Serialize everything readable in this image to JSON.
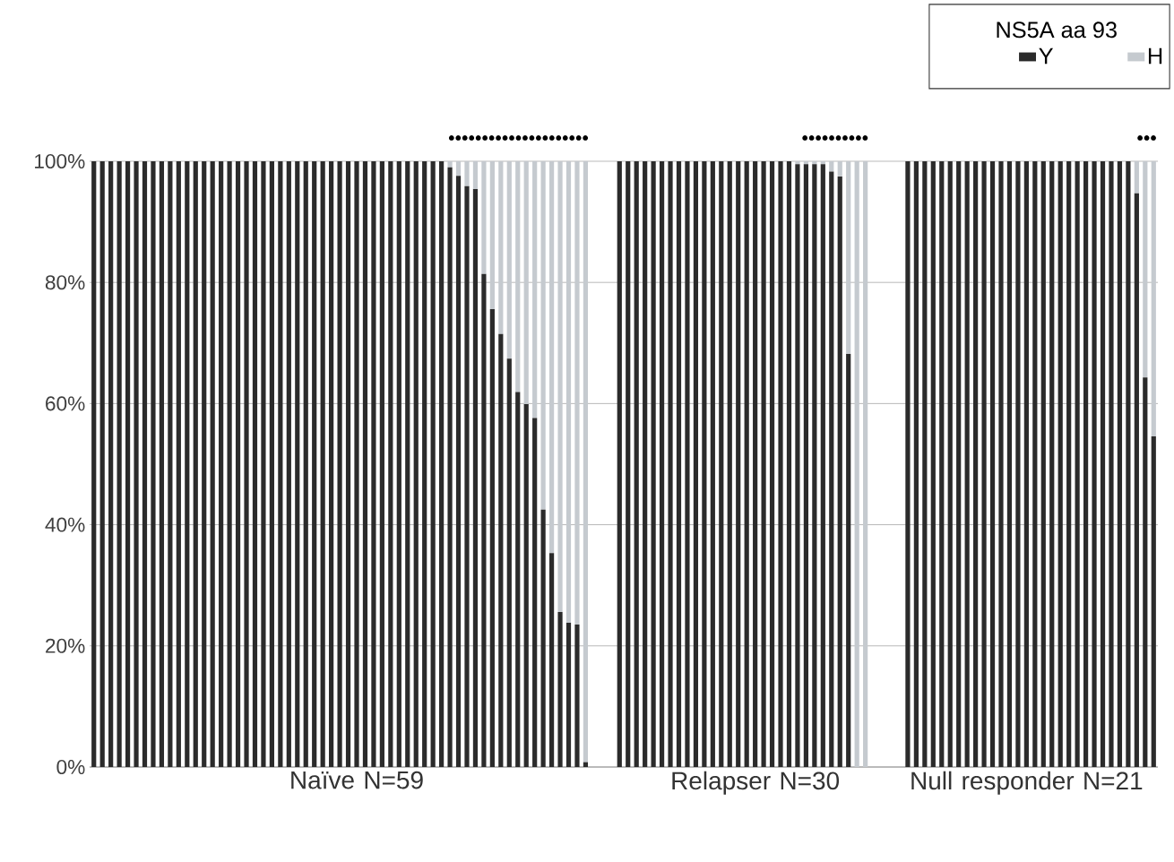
{
  "chart_data": {
    "type": "bar",
    "stacked": true,
    "categories": [
      null,
      null,
      null,
      null,
      null,
      null,
      null,
      null,
      null,
      null,
      null,
      null,
      null,
      null,
      null,
      null,
      null,
      null,
      null,
      null,
      null,
      null,
      null,
      null,
      null,
      null,
      null,
      null,
      null,
      null,
      null,
      "Naïve N=59",
      null,
      null,
      null,
      null,
      null,
      null,
      null,
      null,
      null,
      null,
      null,
      null,
      null,
      null,
      null,
      null,
      null,
      null,
      null,
      null,
      null,
      null,
      null,
      null,
      null,
      null,
      null,
      null,
      null,
      null,
      null,
      null,
      null,
      null,
      null,
      null,
      null,
      null,
      null,
      null,
      null,
      null,
      null,
      null,
      null,
      null,
      "Relapser N=30",
      null,
      null,
      null,
      null,
      null,
      null,
      null,
      null,
      null,
      null,
      null,
      null,
      null,
      null,
      null,
      null,
      null,
      null,
      null,
      null,
      null,
      null,
      null,
      null,
      null,
      null,
      null,
      null,
      null,
      null,
      null,
      "Null responder N=21",
      null,
      null,
      null,
      null,
      null,
      null,
      null,
      null,
      null,
      null,
      null,
      null,
      null,
      null,
      null
    ],
    "series": [
      {
        "name": "Y",
        "color": "#2b2b2b",
        "values": [
          100,
          100,
          100,
          100,
          100,
          100,
          100,
          100,
          100,
          100,
          100,
          100,
          100,
          100,
          100,
          100,
          100,
          100,
          100,
          100,
          100,
          100,
          100,
          100,
          100,
          100,
          100,
          100,
          100,
          100,
          100,
          100,
          100,
          100,
          100,
          100,
          100,
          100,
          100,
          100,
          100,
          100,
          99.0,
          97.6,
          95.9,
          95.4,
          81.4,
          75.6,
          71.5,
          67.4,
          61.9,
          59.9,
          57.6,
          42.5,
          35.3,
          25.6,
          23.8,
          23.5,
          0.8,
          null,
          null,
          null,
          100,
          100,
          100,
          100,
          100,
          100,
          100,
          100,
          100,
          100,
          100,
          100,
          100,
          100,
          100,
          100,
          100,
          100,
          100,
          100,
          100,
          99.5,
          99.5,
          99.5,
          99.5,
          98.3,
          97.5,
          68.2,
          0,
          0,
          null,
          null,
          null,
          null,
          100,
          100,
          100,
          100,
          100,
          100,
          100,
          100,
          100,
          100,
          100,
          100,
          100,
          100,
          100,
          100,
          100,
          100,
          100,
          100,
          100,
          100,
          100,
          100,
          100,
          100,
          100,
          94.7,
          64.3,
          54.6
        ]
      },
      {
        "name": "H",
        "color": "#c5cacf",
        "values": [
          0,
          0,
          0,
          0,
          0,
          0,
          0,
          0,
          0,
          0,
          0,
          0,
          0,
          0,
          0,
          0,
          0,
          0,
          0,
          0,
          0,
          0,
          0,
          0,
          0,
          0,
          0,
          0,
          0,
          0,
          0,
          0,
          0,
          0,
          0,
          0,
          0,
          0,
          0,
          0,
          0,
          0,
          1.0,
          2.4,
          4.1,
          4.6,
          18.6,
          24.4,
          28.5,
          32.6,
          38.1,
          40.1,
          42.4,
          57.5,
          64.7,
          74.4,
          76.2,
          76.5,
          99.2,
          null,
          null,
          null,
          0,
          0,
          0,
          0,
          0,
          0,
          0,
          0,
          0,
          0,
          0,
          0,
          0,
          0,
          0,
          0,
          0,
          0,
          0,
          0,
          0,
          0.5,
          0.5,
          0.5,
          0.5,
          1.7,
          2.5,
          31.8,
          100,
          100,
          null,
          null,
          null,
          null,
          0,
          0,
          0,
          0,
          0,
          0,
          0,
          0,
          0,
          0,
          0,
          0,
          0,
          0,
          0,
          0,
          0,
          0,
          0,
          0,
          0,
          0,
          0,
          0,
          0,
          0,
          0,
          5.3,
          35.7,
          45.4
        ]
      }
    ],
    "ylim": [
      0,
      100
    ],
    "yticks": [
      {
        "value": 0,
        "label": "0%"
      },
      {
        "value": 20,
        "label": "20%"
      },
      {
        "value": 40,
        "label": "40%"
      },
      {
        "value": 60,
        "label": "60%"
      },
      {
        "value": 80,
        "label": "80%"
      },
      {
        "value": 100,
        "label": "100%"
      }
    ],
    "grid": "y",
    "legend": "top right",
    "legend_title": "NS5A aa 93",
    "annotations": [
      "•••••••••••••••••••••",
      "••••••••••",
      "•••"
    ]
  }
}
